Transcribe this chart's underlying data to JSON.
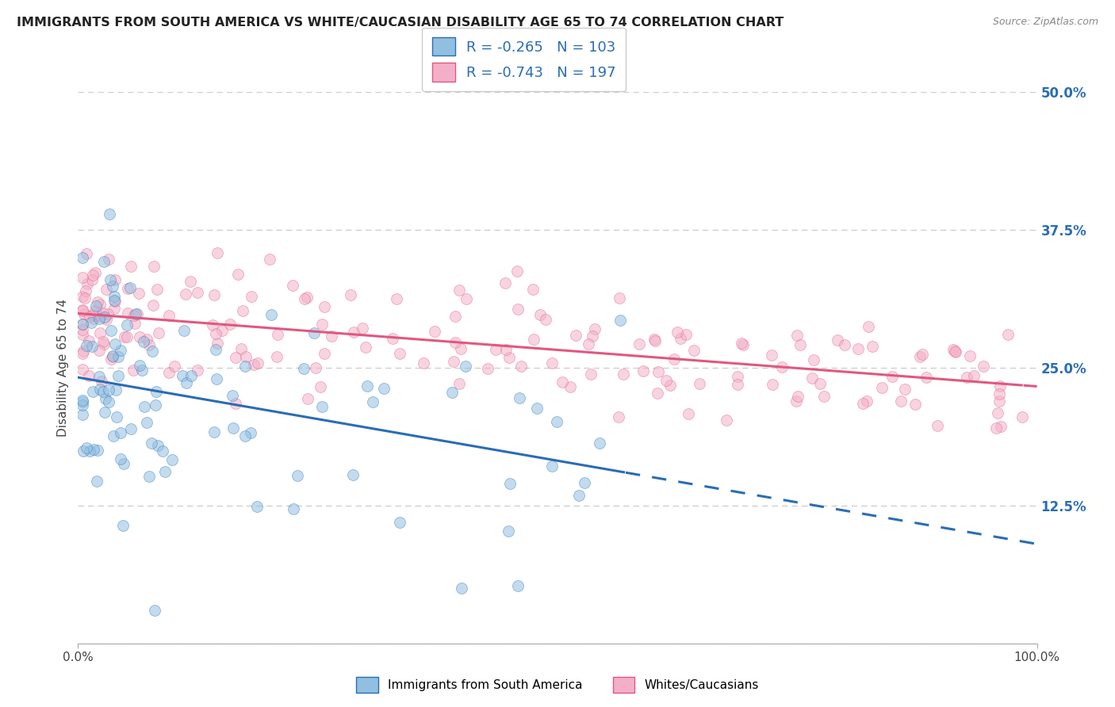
{
  "title": "IMMIGRANTS FROM SOUTH AMERICA VS WHITE/CAUCASIAN DISABILITY AGE 65 TO 74 CORRELATION CHART",
  "source": "Source: ZipAtlas.com",
  "ylabel": "Disability Age 65 to 74",
  "xlim": [
    0,
    100
  ],
  "ylim": [
    0,
    50
  ],
  "yticks": [
    0,
    12.5,
    25.0,
    37.5,
    50.0
  ],
  "ytick_labels": [
    "",
    "12.5%",
    "25.0%",
    "37.5%",
    "50.0%"
  ],
  "blue_R": -0.265,
  "blue_N": 103,
  "pink_R": -0.743,
  "pink_N": 197,
  "blue_color": "#90bfe0",
  "pink_color": "#f4afc8",
  "blue_line_color": "#2a6db5",
  "pink_line_color": "#e05880",
  "legend_blue_label": "Immigrants from South America",
  "legend_pink_label": "Whites/Caucasians",
  "bg_color": "#ffffff",
  "grid_color": "#cccccc",
  "title_color": "#222222",
  "source_color": "#888888",
  "right_tick_color": "#2a6db5"
}
